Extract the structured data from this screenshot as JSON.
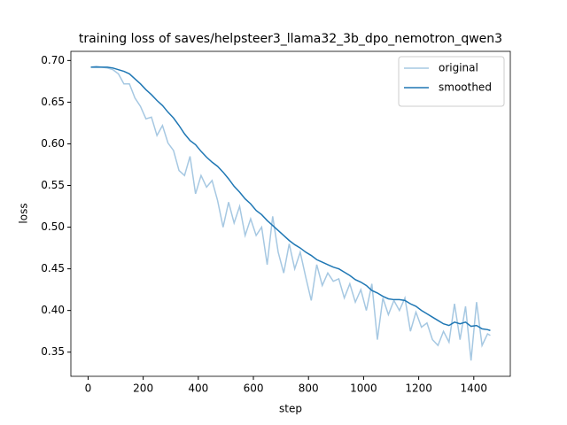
{
  "chart_data": {
    "type": "line",
    "title": "training loss of saves/helpsteer3_llama32_3b_dpo_nemotron_qwen3",
    "xlabel": "step",
    "ylabel": "loss",
    "x": [
      10,
      30,
      50,
      70,
      90,
      110,
      130,
      150,
      170,
      190,
      210,
      230,
      250,
      270,
      290,
      310,
      330,
      350,
      370,
      390,
      410,
      430,
      450,
      470,
      490,
      510,
      530,
      550,
      570,
      590,
      610,
      630,
      650,
      670,
      690,
      710,
      730,
      750,
      770,
      790,
      810,
      830,
      850,
      870,
      890,
      910,
      930,
      950,
      970,
      990,
      1010,
      1030,
      1050,
      1070,
      1090,
      1110,
      1130,
      1150,
      1170,
      1190,
      1210,
      1230,
      1250,
      1270,
      1290,
      1310,
      1330,
      1350,
      1370,
      1390,
      1410,
      1430,
      1450,
      1460
    ],
    "series": [
      {
        "name": "original",
        "color": "#a6c8e2",
        "values": [
          0.692,
          0.693,
          0.692,
          0.691,
          0.689,
          0.684,
          0.672,
          0.672,
          0.655,
          0.645,
          0.63,
          0.632,
          0.61,
          0.622,
          0.601,
          0.592,
          0.568,
          0.562,
          0.585,
          0.54,
          0.562,
          0.548,
          0.556,
          0.532,
          0.5,
          0.53,
          0.505,
          0.525,
          0.49,
          0.51,
          0.49,
          0.5,
          0.455,
          0.513,
          0.47,
          0.445,
          0.48,
          0.45,
          0.47,
          0.44,
          0.412,
          0.455,
          0.43,
          0.445,
          0.435,
          0.438,
          0.415,
          0.432,
          0.41,
          0.425,
          0.4,
          0.432,
          0.365,
          0.415,
          0.395,
          0.412,
          0.4,
          0.415,
          0.375,
          0.398,
          0.38,
          0.385,
          0.365,
          0.358,
          0.375,
          0.362,
          0.408,
          0.365,
          0.405,
          0.34,
          0.41,
          0.358,
          0.372,
          0.37
        ]
      },
      {
        "name": "smoothed",
        "color": "#1f77b4",
        "values": [
          0.692,
          0.692,
          0.692,
          0.692,
          0.691,
          0.689,
          0.687,
          0.684,
          0.678,
          0.672,
          0.665,
          0.659,
          0.652,
          0.646,
          0.638,
          0.631,
          0.622,
          0.612,
          0.604,
          0.599,
          0.591,
          0.584,
          0.578,
          0.573,
          0.566,
          0.558,
          0.549,
          0.542,
          0.534,
          0.528,
          0.52,
          0.515,
          0.508,
          0.502,
          0.496,
          0.49,
          0.484,
          0.479,
          0.475,
          0.47,
          0.466,
          0.461,
          0.458,
          0.455,
          0.452,
          0.45,
          0.446,
          0.442,
          0.437,
          0.434,
          0.43,
          0.424,
          0.421,
          0.417,
          0.414,
          0.413,
          0.413,
          0.412,
          0.408,
          0.405,
          0.4,
          0.396,
          0.392,
          0.388,
          0.384,
          0.382,
          0.386,
          0.384,
          0.386,
          0.381,
          0.382,
          0.378,
          0.377,
          0.376
        ]
      }
    ],
    "xlim": [
      -62.5,
      1532.5
    ],
    "xticks": [
      0,
      200,
      400,
      600,
      800,
      1000,
      1200,
      1400
    ],
    "ylim": [
      0.321,
      0.711
    ],
    "yticks": [
      0.35,
      {
        "value": 0.4,
        "label": "0.40"
      },
      0.45,
      {
        "value": 0.5,
        "label": "0.50"
      },
      0.55,
      {
        "value": 0.6,
        "label": "0.60"
      },
      0.65,
      {
        "value": 0.7,
        "label": "0.70"
      }
    ],
    "grid": false,
    "legend": "upper right"
  }
}
